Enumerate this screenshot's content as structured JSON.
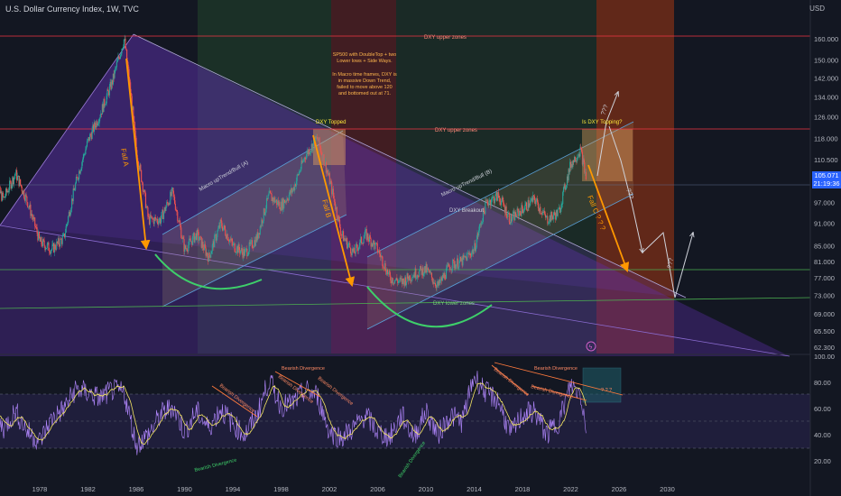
{
  "header": {
    "title": "U.S. Dollar Currency Index, 1W, TVC",
    "currency": "USD",
    "last_price": "105.071",
    "countdown": "21:19:36"
  },
  "chart_data": [
    {
      "type": "line",
      "pane": "price",
      "yscale": "log",
      "ylim": [
        61,
        170
      ],
      "x": [
        1974,
        1975,
        1976,
        1977,
        1978,
        1979,
        1980,
        1981,
        1982,
        1983,
        1984,
        1985,
        1986,
        1987,
        1988,
        1989,
        1990,
        1991,
        1992,
        1993,
        1994,
        1995,
        1996,
        1997,
        1998,
        1999,
        2000,
        2001,
        2002,
        2003,
        2004,
        2005,
        2006,
        2007,
        2008,
        2009,
        2010,
        2011,
        2012,
        2013,
        2014,
        2015,
        2016,
        2017,
        2018,
        2019,
        2020,
        2021,
        2022,
        2022.8,
        2023.3
      ],
      "series": [
        {
          "values": [
            104,
            98,
            106,
            97,
            86,
            84,
            87,
            103,
            117,
            127,
            140,
            160,
            114,
            92,
            92,
            100,
            84,
            88,
            82,
            91,
            85,
            83,
            87,
            99,
            96,
            101,
            112,
            118,
            104,
            88,
            83,
            88,
            84,
            77,
            76,
            78,
            79,
            75,
            80,
            81,
            84,
            97,
            99,
            92,
            95,
            98,
            92,
            94,
            109,
            114,
            104
          ]
        }
      ],
      "ticks_x": [
        "1978",
        "1982",
        "1986",
        "1990",
        "1994",
        "1998",
        "2002",
        "2006",
        "2010",
        "2014",
        "2018",
        "2022",
        "2026",
        "2030"
      ],
      "ticks_y": [
        "160.000",
        "150.000",
        "142.000",
        "134.000",
        "126.000",
        "118.000",
        "110.500",
        "97.000",
        "91.000",
        "85.000",
        "81.000",
        "77.000",
        "73.000",
        "69.000",
        "65.500",
        "62.300"
      ],
      "annotations": {
        "upper_zone_1": "DXY upper zones",
        "upper_zone_2": "DXY upper zones",
        "lower_zone": "DXY lower zones",
        "fall_a": "Fall A",
        "fall_b": "Fall B",
        "fall_c": "Fall C ? ? ?",
        "topped": "DXY Topped",
        "is_topping": "Is DXY Topping?",
        "macro_bull_a": "Macro upTrend/Bull (A)",
        "macro_bull_b": "Macro upTrend/Bull (B)",
        "breakout": "DXY Breakout",
        "note_1": "SP500 with DoubleTop + two Lower lows + Side Ways.",
        "note_2": "In Macro time frames, DXY is in massive Down Trend, failed to move above 120 and bottomed out at 71.",
        "q1": "???",
        "q2": "???",
        "q3": "???"
      }
    },
    {
      "type": "line",
      "pane": "RSI",
      "ylim": [
        15,
        100
      ],
      "x": [
        1974,
        1975,
        1976,
        1977,
        1978,
        1979,
        1980,
        1981,
        1982,
        1983,
        1984,
        1985,
        1986,
        1987,
        1988,
        1989,
        1990,
        1991,
        1992,
        1993,
        1994,
        1995,
        1996,
        1997,
        1998,
        1999,
        2000,
        2001,
        2002,
        2003,
        2004,
        2005,
        2006,
        2007,
        2008,
        2009,
        2010,
        2011,
        2012,
        2013,
        2014,
        2015,
        2016,
        2017,
        2018,
        2019,
        2020,
        2021,
        2022,
        2022.8,
        2023.3
      ],
      "series": [
        {
          "values": [
            60,
            45,
            58,
            42,
            35,
            52,
            60,
            75,
            72,
            68,
            74,
            72,
            32,
            40,
            55,
            62,
            42,
            58,
            45,
            60,
            48,
            40,
            55,
            82,
            62,
            64,
            74,
            70,
            42,
            38,
            45,
            55,
            42,
            38,
            55,
            38,
            58,
            40,
            55,
            50,
            85,
            72,
            66,
            40,
            55,
            58,
            40,
            50,
            78,
            72,
            45
          ]
        }
      ],
      "ticks_y": [
        "100.00",
        "80.00",
        "60.00",
        "40.00",
        "20.00"
      ],
      "annotations": {
        "bearish_1": "Bearish Divergence",
        "bearish_2": "Bearish Divergence",
        "bearish_3": "Bearish Divergence",
        "bearish_4": "Bearish Divergence",
        "bearish_5": "Bearish Divergence",
        "bearish_6": "Bearish Divergence",
        "bearish_7": "Bearish Divergence",
        "bearish_8": "Bearish Divergence",
        "q": "? ? ?"
      }
    }
  ],
  "colors": {
    "bg": "#131722",
    "up": "#26a69a",
    "down": "#ef5350",
    "zone_red": "#f23645",
    "zone_green": "#4caf50",
    "arrow": "#ff9800",
    "wedge": "#7b3fe4",
    "rsi": "#b388ff",
    "rsi_ma": "#f5e663"
  }
}
